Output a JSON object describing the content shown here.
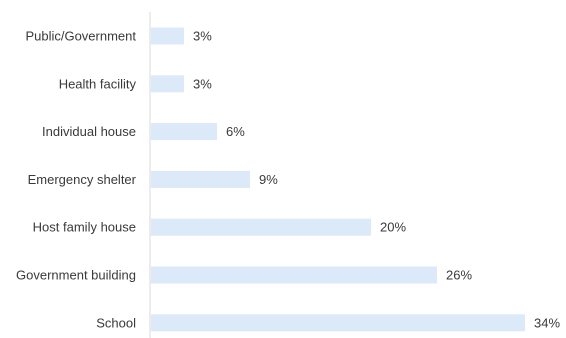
{
  "chart_data": {
    "type": "bar",
    "orientation": "horizontal",
    "categories": [
      "Public/Government",
      "Health facility",
      "Individual house",
      "Emergency shelter",
      "Host family house",
      "Government building",
      "School"
    ],
    "values": [
      3,
      3,
      6,
      9,
      20,
      26,
      34
    ],
    "value_labels": [
      "3%",
      "3%",
      "6%",
      "9%",
      "20%",
      "26%",
      "34%"
    ],
    "unit": "%",
    "xlim": [
      0,
      34
    ],
    "grid": false,
    "legend": "none",
    "colors": {
      "bar": "#dce9f8",
      "text": "#3a3a3a",
      "axis": "#d9d9d9"
    }
  }
}
